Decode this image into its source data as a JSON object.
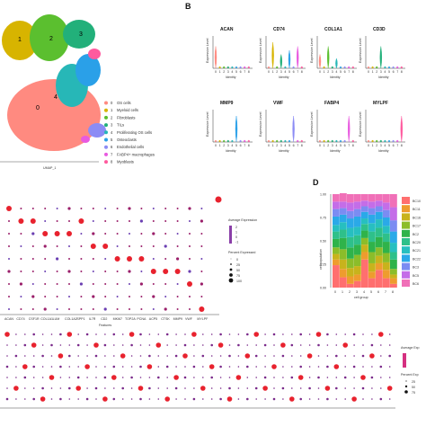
{
  "figure": {
    "panel_labels": {
      "b": "B",
      "d": "D"
    },
    "umap": {
      "x_label": "UMAP_1",
      "legend": [
        {
          "id": "0",
          "label": "OS cells",
          "color": "#ff8a80"
        },
        {
          "id": "1",
          "label": "Myeloid cells",
          "color": "#d7b400"
        },
        {
          "id": "2",
          "label": "Fibroblasts",
          "color": "#5bbf2f"
        },
        {
          "id": "3",
          "label": "TILs",
          "color": "#22b07a"
        },
        {
          "id": "4",
          "label": "Proliferating OS cells",
          "color": "#27b7b7"
        },
        {
          "id": "5",
          "label": "Osteoclasts",
          "color": "#2aa0e8"
        },
        {
          "id": "6",
          "label": "Endothelial cells",
          "color": "#8c8cf5"
        },
        {
          "id": "7",
          "label": "FABP4+ macrophages",
          "color": "#e85ae0"
        },
        {
          "id": "8",
          "label": "Myoblasts",
          "color": "#ff5a9e"
        }
      ],
      "cluster_numbers": [
        "0",
        "1",
        "2",
        "3",
        "4",
        "5",
        "6",
        "7",
        "8"
      ]
    },
    "violin": {
      "y_label": "Expression Level",
      "x_label": "Identity",
      "genes": [
        "ACAN",
        "CD74",
        "COL1A1",
        "CD3D",
        "MMP9",
        "VWF",
        "FABP4",
        "MYLPF"
      ]
    },
    "dotplot_c": {
      "x_label": "Features",
      "genes": [
        "ACAN",
        "CD74",
        "CSF1R",
        "COL1A1",
        "LUM",
        "COL1A2",
        "SPP1",
        "IL7R",
        "CD2",
        "MKI67",
        "TOP2A",
        "PCNA",
        "ACP5",
        "CTSK",
        "MMP9",
        "VWF",
        "MYLPF"
      ],
      "legend_title_1": "Average Expression",
      "legend_ticks_1": [
        "2",
        "1",
        "0",
        "-1"
      ],
      "legend_title_2": "Percent Expressed",
      "legend_ticks_2": [
        "0",
        "25",
        "50",
        "75",
        "100"
      ]
    },
    "dotplot_e": {
      "legend_title_1": "Average Exp",
      "legend_title_2": "Percent Exp",
      "legend_ticks_2": [
        "25",
        "50",
        "75"
      ]
    }
  },
  "chart_data": [
    {
      "type": "bar",
      "panel": "D",
      "stacked": true,
      "ylabel": "cell population",
      "xlabel": "cell group",
      "categories": [
        "0",
        "1",
        "2",
        "3",
        "4",
        "5",
        "6",
        "7",
        "8"
      ],
      "ylim": [
        0,
        1
      ],
      "yticks": [
        "0.00",
        "0.25",
        "0.50",
        "0.75",
        "1.00"
      ],
      "series": [
        {
          "name": "BC10",
          "color": "#ff6f6f",
          "values": [
            0.24,
            0.11,
            0.04,
            0.07,
            0.3,
            0.1,
            0.19,
            0.1,
            0.04
          ]
        },
        {
          "name": "BC11",
          "color": "#ee9c2e",
          "values": [
            0.06,
            0.09,
            0.08,
            0.07,
            0.08,
            0.07,
            0.07,
            0.09,
            0.06
          ]
        },
        {
          "name": "BC16",
          "color": "#c8b31c",
          "values": [
            0.06,
            0.1,
            0.09,
            0.09,
            0.08,
            0.09,
            0.08,
            0.08,
            0.04
          ]
        },
        {
          "name": "BC17",
          "color": "#8bbd2a",
          "values": [
            0.07,
            0.11,
            0.1,
            0.12,
            0.07,
            0.12,
            0.09,
            0.1,
            0.06
          ]
        },
        {
          "name": "BC2",
          "color": "#2fb34a",
          "values": [
            0.09,
            0.12,
            0.12,
            0.11,
            0.08,
            0.11,
            0.11,
            0.12,
            0.1
          ]
        },
        {
          "name": "BC20",
          "color": "#2ec08a",
          "values": [
            0.08,
            0.09,
            0.11,
            0.1,
            0.07,
            0.11,
            0.1,
            0.09,
            0.08
          ]
        },
        {
          "name": "BC21",
          "color": "#27bfc0",
          "values": [
            0.07,
            0.08,
            0.1,
            0.09,
            0.06,
            0.09,
            0.09,
            0.08,
            0.1
          ]
        },
        {
          "name": "BC22",
          "color": "#2aa9e8",
          "values": [
            0.09,
            0.08,
            0.1,
            0.11,
            0.07,
            0.09,
            0.08,
            0.09,
            0.12
          ]
        },
        {
          "name": "BC3",
          "color": "#7b8cf2",
          "values": [
            0.08,
            0.07,
            0.08,
            0.08,
            0.06,
            0.07,
            0.06,
            0.08,
            0.12
          ]
        },
        {
          "name": "BC5",
          "color": "#c46de8",
          "values": [
            0.08,
            0.07,
            0.09,
            0.08,
            0.06,
            0.07,
            0.06,
            0.08,
            0.14
          ]
        },
        {
          "name": "BC6",
          "color": "#f070b8",
          "values": [
            0.08,
            0.09,
            0.09,
            0.08,
            0.07,
            0.08,
            0.07,
            0.09,
            0.14
          ]
        }
      ]
    }
  ]
}
